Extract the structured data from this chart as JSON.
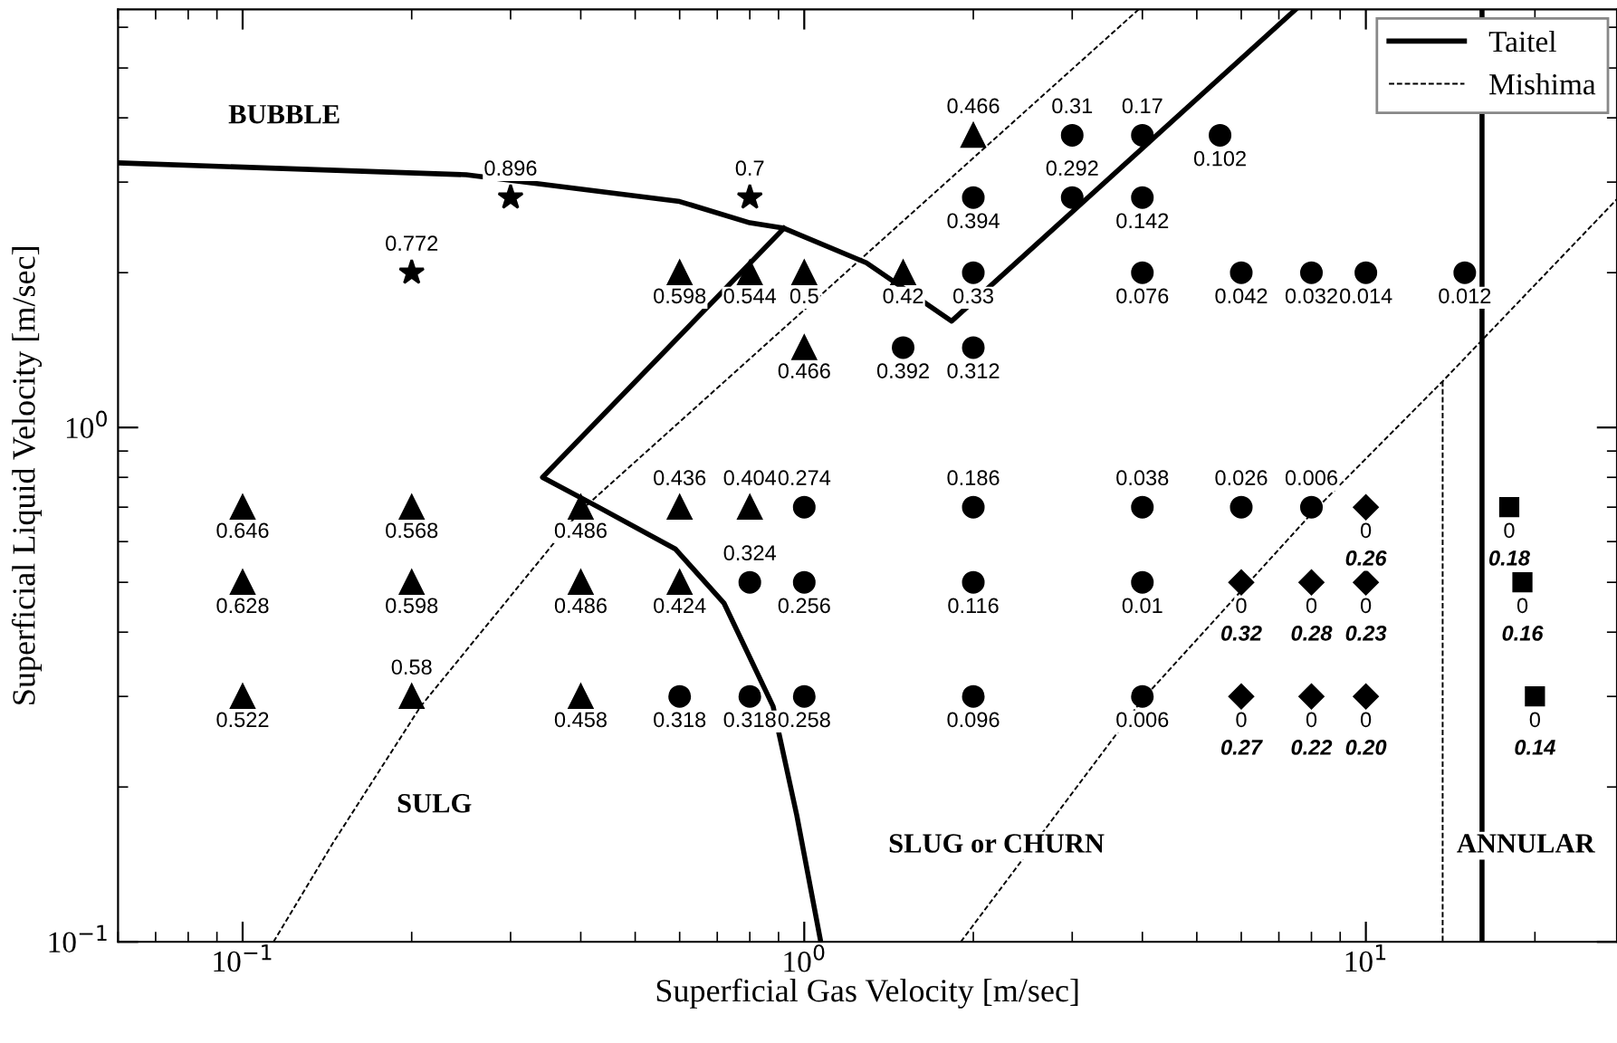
{
  "chart_data": {
    "type": "scatter",
    "xlabel": "Superficial Gas Velocity [m/sec]",
    "ylabel": "Superficial Liquid Velocity [m/sec]",
    "log": "xy",
    "xlim": [
      0.06,
      28
    ],
    "ylim": [
      0.1,
      6.5
    ],
    "xticks": [
      {
        "value": 0.1,
        "label": "10$^{−1}$"
      },
      {
        "value": 1,
        "label": "10$^{0}$"
      },
      {
        "value": 10,
        "label": "10$^{1}$"
      }
    ],
    "yticks": [
      {
        "value": 0.1,
        "label": "10$^{−1}$"
      },
      {
        "value": 1,
        "label": "10$^{0}$"
      }
    ],
    "legend": "top right",
    "annotations": [
      "BUBBLE",
      "SULG",
      "SLUG or CHURN",
      "ANNULAR",
      {
        "text": "0.896",
        "x": 0.3,
        "y": 2.8
      },
      {
        "text": "0.7",
        "x": 0.8,
        "y": 2.8
      },
      {
        "text": "0.772",
        "x": 0.2,
        "y": 2.0
      },
      {
        "text": "0.466",
        "x": 2,
        "y": 3.7
      },
      {
        "text": "0.31",
        "x": 3,
        "y": 3.7
      },
      {
        "text": "0.17",
        "x": 4,
        "y": 3.7
      },
      {
        "text": "0.292",
        "x": 3,
        "y": 2.8
      },
      {
        "text": "0.436",
        "x": 0.6,
        "y": 0.7
      },
      {
        "text": "0.404",
        "x": 0.8,
        "y": 0.7
      },
      {
        "text": "0.274",
        "x": 1.0,
        "y": 0.7
      },
      {
        "text": "0.186",
        "x": 2,
        "y": 0.7
      },
      {
        "text": "0.038",
        "x": 4,
        "y": 0.7
      },
      {
        "text": "0.026",
        "x": 6,
        "y": 0.7
      },
      {
        "text": "0.006",
        "x": 8,
        "y": 0.7
      },
      {
        "text": "0.324",
        "x": 0.8,
        "y": 0.5
      },
      {
        "text": "0.58",
        "x": 0.2,
        "y": 0.3
      },
      {
        "text": "0.102",
        "x": 5.5,
        "y": 3.7
      },
      {
        "text": "0.394",
        "x": 2,
        "y": 2.8
      },
      {
        "text": "0.142",
        "x": 4,
        "y": 2.8
      },
      {
        "text": "0.598",
        "x": 0.6,
        "y": 2
      },
      {
        "text": "0.544",
        "x": 0.8,
        "y": 2
      },
      {
        "text": "0.5",
        "x": 1.0,
        "y": 2
      },
      {
        "text": "0.42",
        "x": 1.5,
        "y": 2
      },
      {
        "text": "0.33",
        "x": 2,
        "y": 2
      },
      {
        "text": "0.076",
        "x": 4,
        "y": 2
      },
      {
        "text": "0.042",
        "x": 6,
        "y": 2
      },
      {
        "text": "0.032",
        "x": 8,
        "y": 2
      },
      {
        "text": "0.014",
        "x": 10,
        "y": 2
      },
      {
        "text": "0.012",
        "x": 15,
        "y": 2
      },
      {
        "text": "0.466",
        "x": 1.0,
        "y": 1.43
      },
      {
        "text": "0.392",
        "x": 1.5,
        "y": 1.43
      },
      {
        "text": "0.312",
        "x": 2,
        "y": 1.43
      },
      {
        "text": "0.646",
        "x": 0.1,
        "y": 0.7
      },
      {
        "text": "0.568",
        "x": 0.2,
        "y": 0.7
      },
      {
        "text": "0.486",
        "x": 0.4,
        "y": 0.7
      },
      {
        "text": "0.628",
        "x": 0.1,
        "y": 0.5
      },
      {
        "text": "0.598",
        "x": 0.2,
        "y": 0.5
      },
      {
        "text": "0.486",
        "x": 0.4,
        "y": 0.5
      },
      {
        "text": "0.424",
        "x": 0.6,
        "y": 0.5
      },
      {
        "text": "0.256",
        "x": 1.0,
        "y": 0.5
      },
      {
        "text": "0.116",
        "x": 2,
        "y": 0.5
      },
      {
        "text": "0.01",
        "x": 4,
        "y": 0.5
      },
      {
        "text": "0.522",
        "x": 0.1,
        "y": 0.3
      },
      {
        "text": "0.458",
        "x": 0.4,
        "y": 0.3
      },
      {
        "text": "0.318",
        "x": 0.6,
        "y": 0.3
      },
      {
        "text": "0.318",
        "x": 0.8,
        "y": 0.3
      },
      {
        "text": "0.258",
        "x": 1.0,
        "y": 0.3
      },
      {
        "text": "0.096",
        "x": 2,
        "y": 0.3
      },
      {
        "text": "0.006",
        "x": 4,
        "y": 0.3
      },
      {
        "text": "0",
        "x": 10,
        "y": 0.7
      },
      {
        "text": "0.26",
        "x": 10,
        "y": 0.7
      },
      {
        "text": "0",
        "x": 6,
        "y": 0.5
      },
      {
        "text": "0.32",
        "x": 6,
        "y": 0.5
      },
      {
        "text": "0",
        "x": 8,
        "y": 0.5
      },
      {
        "text": "0.28",
        "x": 8,
        "y": 0.5
      },
      {
        "text": "0",
        "x": 10,
        "y": 0.5
      },
      {
        "text": "0.23",
        "x": 10,
        "y": 0.5
      },
      {
        "text": "0",
        "x": 6,
        "y": 0.3
      },
      {
        "text": "0.27",
        "x": 6,
        "y": 0.3
      },
      {
        "text": "0",
        "x": 8,
        "y": 0.3
      },
      {
        "text": "0.22",
        "x": 8,
        "y": 0.3
      },
      {
        "text": "0",
        "x": 10,
        "y": 0.3
      },
      {
        "text": "0.20",
        "x": 10,
        "y": 0.3
      },
      {
        "text": "0",
        "x": 18,
        "y": 0.7
      },
      {
        "text": "0.18",
        "x": 18,
        "y": 0.7
      },
      {
        "text": "0",
        "x": 19,
        "y": 0.5
      },
      {
        "text": "0.16",
        "x": 19,
        "y": 0.5
      },
      {
        "text": "0",
        "x": 20,
        "y": 0.3
      },
      {
        "text": "0.14",
        "x": 20,
        "y": 0.3
      }
    ],
    "series": [
      {
        "type": "line",
        "name": "Taitel",
        "color": "#000000",
        "line_style": "solid",
        "x": [
          0.06,
          0.25,
          0.6,
          0.8,
          0.92,
          1.29,
          1.83,
          7.5
        ],
        "values": [
          3.27,
          3.1,
          2.75,
          2.5,
          2.44,
          2.09,
          1.61,
          6.5
        ]
      },
      {
        "type": "line",
        "color": "#000000",
        "line_style": "solid",
        "x": [
          0.92,
          0.342,
          0.43,
          0.59,
          0.72,
          0.88,
          0.97,
          1.07
        ],
        "values": [
          2.44,
          0.8,
          0.7,
          0.58,
          0.455,
          0.287,
          0.176,
          0.1
        ]
      },
      {
        "type": "line",
        "color": "#000000",
        "line_style": "solid",
        "x": [
          16.1,
          16.1
        ],
        "values": [
          0.1,
          6.5
        ]
      },
      {
        "type": "line",
        "name": "Mishima",
        "color": "#000000",
        "line_style": "dashed",
        "x": [
          0.1135,
          0.145,
          0.2075,
          0.397,
          3.94
        ],
        "values": [
          0.1,
          0.156,
          0.287,
          0.684,
          6.5
        ]
      },
      {
        "type": "line",
        "color": "#000000",
        "line_style": "dashed",
        "x": [
          1.9,
          4,
          8,
          13.7,
          28
        ],
        "values": [
          0.1,
          0.296,
          0.68,
          1.23,
          2.78
        ]
      },
      {
        "type": "line",
        "color": "#000000",
        "line_style": "dashed",
        "x": [
          13.7,
          13.7
        ],
        "values": [
          1.23,
          0.1
        ]
      },
      {
        "marker": "star",
        "color": "#000000",
        "x": [
          0.3,
          0.8,
          0.2
        ],
        "values": [
          2.8,
          2.8,
          2.0
        ]
      },
      {
        "marker": "triangle",
        "color": "#000000",
        "x": [
          2,
          0.6,
          0.8,
          1.0,
          1.5,
          1.0,
          0.1,
          0.2,
          0.4,
          0.6,
          0.8,
          0.1,
          0.2,
          0.4,
          0.6,
          0.1,
          0.2,
          0.4
        ],
        "values": [
          3.7,
          2,
          2,
          2,
          2,
          1.43,
          0.7,
          0.7,
          0.7,
          0.7,
          0.7,
          0.5,
          0.5,
          0.5,
          0.5,
          0.3,
          0.3,
          0.3
        ]
      },
      {
        "marker": "circle",
        "color": "#000000",
        "x": [
          3,
          4,
          5.5,
          2,
          3,
          4,
          2,
          4,
          6,
          8,
          10,
          15,
          1.5,
          2,
          1.0,
          2,
          4,
          6,
          8,
          0.8,
          1.0,
          2,
          4,
          0.6,
          0.8,
          1.0,
          2,
          4
        ],
        "values": [
          3.7,
          3.7,
          3.7,
          2.8,
          2.8,
          2.8,
          2,
          2,
          2,
          2,
          2,
          2,
          1.43,
          1.43,
          0.7,
          0.7,
          0.7,
          0.7,
          0.7,
          0.5,
          0.5,
          0.5,
          0.5,
          0.3,
          0.3,
          0.3,
          0.3,
          0.3
        ]
      },
      {
        "marker": "diamond",
        "color": "#000000",
        "x": [
          10,
          6,
          8,
          10,
          6,
          8,
          10
        ],
        "values": [
          0.7,
          0.5,
          0.5,
          0.5,
          0.3,
          0.3,
          0.3
        ]
      },
      {
        "marker": "square",
        "color": "#000000",
        "x": [
          18,
          19,
          20
        ],
        "values": [
          0.7,
          0.5,
          0.3
        ]
      }
    ]
  }
}
